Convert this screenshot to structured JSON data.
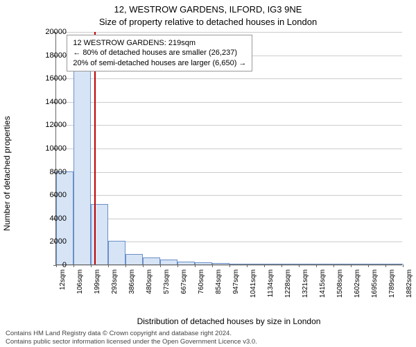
{
  "chart": {
    "type": "histogram",
    "title_main": "12, WESTROW GARDENS, ILFORD, IG3 9NE",
    "title_sub": "Size of property relative to detached houses in London",
    "ylabel": "Number of detached properties",
    "xlabel": "Distribution of detached houses by size in London",
    "title_fontsize": 13,
    "label_fontsize": 12,
    "tick_fontsize": 11,
    "background_color": "#ffffff",
    "grid_color": "#cccccc",
    "axis_color": "#666666",
    "bar_fill": "#d6e4f5",
    "bar_stroke": "#6b8fc7",
    "marker_color": "#c00000",
    "ymax": 20000,
    "ytick_step": 2000,
    "yticks": [
      0,
      2000,
      4000,
      6000,
      8000,
      10000,
      12000,
      14000,
      16000,
      18000,
      20000
    ],
    "xtick_labels": [
      "12sqm",
      "106sqm",
      "199sqm",
      "293sqm",
      "386sqm",
      "480sqm",
      "573sqm",
      "667sqm",
      "760sqm",
      "854sqm",
      "947sqm",
      "1041sqm",
      "1134sqm",
      "1228sqm",
      "1321sqm",
      "1415sqm",
      "1508sqm",
      "1602sqm",
      "1695sqm",
      "1789sqm",
      "1882sqm"
    ],
    "bars": [
      8000,
      17000,
      5200,
      2000,
      900,
      600,
      400,
      220,
      180,
      120,
      90,
      70,
      50,
      48,
      40,
      30,
      28,
      22,
      20,
      18
    ],
    "marker_x_value": 219,
    "x_min": 12,
    "x_max": 1882,
    "info_box": {
      "line1": "12 WESTROW GARDENS: 219sqm",
      "line2": "← 80% of detached houses are smaller (26,237)",
      "line3": "20% of semi-detached houses are larger (6,650) →"
    }
  },
  "footer": {
    "line1": "Contains HM Land Registry data © Crown copyright and database right 2024.",
    "line2": "Contains public sector information licensed under the Open Government Licence v3.0."
  }
}
